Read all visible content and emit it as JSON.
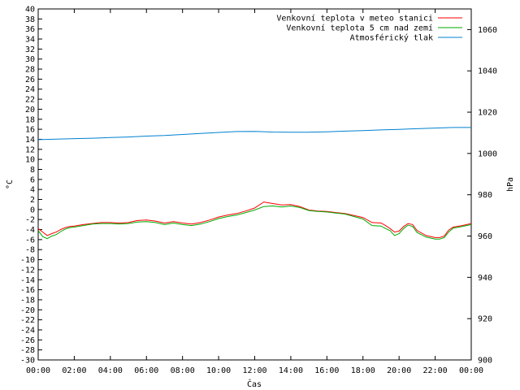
{
  "chart_data": {
    "type": "line",
    "title": "",
    "xlabel": "Čas",
    "ylabel_left": "°C",
    "ylabel_right": "hPa",
    "x_ticks": [
      "00:00",
      "02:00",
      "04:00",
      "06:00",
      "08:00",
      "10:00",
      "12:00",
      "14:00",
      "16:00",
      "18:00",
      "20:00",
      "22:00",
      "00:00"
    ],
    "x_range_hours": [
      0,
      24
    ],
    "ylim_left": [
      -30,
      40
    ],
    "ylim_right": [
      900,
      1070
    ],
    "y_ticks_left": [
      40,
      38,
      36,
      34,
      32,
      30,
      28,
      26,
      24,
      22,
      20,
      18,
      16,
      14,
      12,
      10,
      8,
      6,
      4,
      2,
      0,
      -2,
      -4,
      -6,
      -8,
      -10,
      -12,
      -14,
      -16,
      -18,
      -20,
      -22,
      -24,
      -26,
      -28,
      -30
    ],
    "y_ticks_right": [
      1060,
      1040,
      1020,
      1000,
      980,
      960,
      940,
      920,
      900
    ],
    "legend_position": "top-right",
    "series": [
      {
        "name": "Venkovní teplota v meteo stanici",
        "color": "#ff0000",
        "axis": "left",
        "x": [
          0,
          0.25,
          0.5,
          0.75,
          1,
          1.25,
          1.5,
          1.75,
          2,
          2.5,
          3,
          3.5,
          4,
          4.5,
          5,
          5.5,
          6,
          6.5,
          7,
          7.5,
          8,
          8.5,
          9,
          9.5,
          10,
          10.5,
          11,
          11.5,
          12,
          12.5,
          13,
          13.5,
          14,
          14.5,
          15,
          15.5,
          16,
          16.5,
          17,
          17.5,
          18,
          18.5,
          19,
          19.25,
          19.5,
          19.75,
          20,
          20.25,
          20.5,
          20.75,
          21,
          21.5,
          22,
          22.25,
          22.5,
          22.75,
          23,
          23.5,
          24
        ],
        "values": [
          -3.8,
          -4.5,
          -5.2,
          -4.8,
          -4.5,
          -4.0,
          -3.6,
          -3.4,
          -3.3,
          -3.0,
          -2.8,
          -2.6,
          -2.6,
          -2.7,
          -2.6,
          -2.2,
          -2.1,
          -2.3,
          -2.7,
          -2.4,
          -2.7,
          -2.9,
          -2.6,
          -2.1,
          -1.5,
          -1.1,
          -0.8,
          -0.3,
          0.3,
          1.5,
          1.2,
          0.9,
          1.0,
          0.6,
          -0.1,
          -0.3,
          -0.4,
          -0.6,
          -0.8,
          -1.2,
          -1.6,
          -2.6,
          -2.7,
          -3.2,
          -3.8,
          -4.5,
          -4.3,
          -3.4,
          -2.8,
          -3.0,
          -4.2,
          -5.2,
          -5.6,
          -5.6,
          -5.3,
          -4.1,
          -3.5,
          -3.2,
          -2.8
        ]
      },
      {
        "name": "Venkovní teplota 5 cm nad zemí",
        "color": "#00aa00",
        "axis": "left",
        "x": [
          0,
          0.25,
          0.5,
          0.75,
          1,
          1.25,
          1.5,
          1.75,
          2,
          2.5,
          3,
          3.5,
          4,
          4.5,
          5,
          5.5,
          6,
          6.5,
          7,
          7.5,
          8,
          8.5,
          9,
          9.5,
          10,
          10.5,
          11,
          11.5,
          12,
          12.5,
          13,
          13.5,
          14,
          14.5,
          15,
          15.5,
          16,
          16.5,
          17,
          17.5,
          18,
          18.5,
          19,
          19.25,
          19.5,
          19.75,
          20,
          20.25,
          20.5,
          20.75,
          21,
          21.5,
          22,
          22.25,
          22.5,
          22.75,
          23,
          23.5,
          24
        ],
        "values": [
          -4.2,
          -5.4,
          -5.8,
          -5.3,
          -5.0,
          -4.4,
          -3.9,
          -3.6,
          -3.5,
          -3.2,
          -2.9,
          -2.8,
          -2.8,
          -2.9,
          -2.8,
          -2.5,
          -2.4,
          -2.6,
          -3.0,
          -2.7,
          -3.0,
          -3.2,
          -2.9,
          -2.4,
          -1.8,
          -1.4,
          -1.1,
          -0.6,
          -0.1,
          0.6,
          0.7,
          0.5,
          0.7,
          0.4,
          -0.2,
          -0.4,
          -0.5,
          -0.7,
          -0.9,
          -1.4,
          -1.9,
          -3.2,
          -3.3,
          -3.8,
          -4.2,
          -5.2,
          -4.8,
          -3.8,
          -3.1,
          -3.4,
          -4.6,
          -5.5,
          -5.9,
          -5.9,
          -5.6,
          -4.5,
          -3.7,
          -3.4,
          -3.0
        ]
      },
      {
        "name": "Atmosférický tlak",
        "color": "#0080d0",
        "axis": "right",
        "x": [
          0,
          1,
          2,
          3,
          4,
          5,
          6,
          7,
          8,
          9,
          10,
          11,
          12,
          13,
          14,
          15,
          16,
          17,
          18,
          19,
          20,
          21,
          22,
          23,
          24
        ],
        "values": [
          1006.7,
          1006.9,
          1007.2,
          1007.4,
          1007.7,
          1008.0,
          1008.4,
          1008.7,
          1009.2,
          1009.7,
          1010.2,
          1010.6,
          1010.7,
          1010.4,
          1010.3,
          1010.3,
          1010.5,
          1010.8,
          1011.1,
          1011.4,
          1011.7,
          1012.0,
          1012.3,
          1012.6,
          1012.6
        ]
      }
    ]
  }
}
